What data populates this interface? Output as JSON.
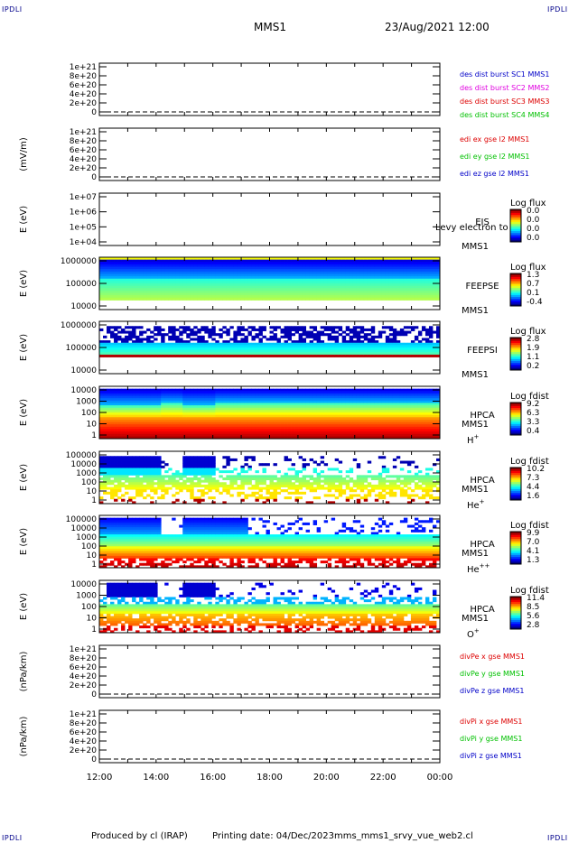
{
  "corner_label": "IPDLI",
  "header": {
    "spacecraft": "MMS1",
    "datetime": "23/Aug/2021 12:00"
  },
  "footer": {
    "produced_by": "Produced by cl (IRAP)",
    "printing_date": "Printing date: 04/Dec/2023",
    "script": "mms_mms1_srvy_vue_web2.cl"
  },
  "colors": {
    "blue": "#0000c8",
    "magenta": "#e000e0",
    "red": "#dd0000",
    "green": "#00c000"
  },
  "chart_data": {
    "type": "heatmap",
    "x_ticks": [
      "12:00",
      "14:00",
      "16:00",
      "18:00",
      "20:00",
      "22:00",
      "00:00"
    ],
    "panels": [
      {
        "kind": "line",
        "ylabel": "",
        "yticks": [
          "1e+21",
          "8e+20",
          "6e+20",
          "4e+20",
          "2e+20",
          "0"
        ],
        "dashed_zero": true,
        "legend": [
          {
            "text": "des dist burst SC1 MMS1",
            "color": "#0000c8"
          },
          {
            "text": "des dist burst SC2 MMS2",
            "color": "#e000e0"
          },
          {
            "text": "des dist burst SC3 MMS3",
            "color": "#dd0000"
          },
          {
            "text": "des dist burst SC4 MMS4",
            "color": "#00c000"
          }
        ]
      },
      {
        "kind": "line",
        "ylabel": "(mV/m)",
        "yticks": [
          "1e+21",
          "8e+20",
          "6e+20",
          "4e+20",
          "2e+20",
          "0"
        ],
        "dashed_zero": true,
        "legend": [
          {
            "text": "edi ex gse l2 MMS1",
            "color": "#dd0000"
          },
          {
            "text": "edi ey gse l2 MMS1",
            "color": "#00c000"
          },
          {
            "text": "edi ez gse l2 MMS1",
            "color": "#0000c8"
          }
        ]
      },
      {
        "kind": "spectro",
        "ylabel": "E (eV)",
        "yticks": [
          "1e+07",
          "1e+06",
          "1e+05",
          "1e+04"
        ],
        "label": [
          "EIS",
          "MMS1"
        ],
        "overlay": "Levy electron to",
        "colorbar": {
          "title": "Log flux",
          "ticks": [
            "0.0",
            "0.0",
            "0.0",
            "0.0"
          ]
        },
        "fill": "empty"
      },
      {
        "kind": "spectro",
        "ylabel": "E (eV)",
        "yticks": [
          "1000000",
          "100000",
          "10000"
        ],
        "label": [
          "FEEPSE",
          "MMS1"
        ],
        "colorbar": {
          "title": "Log flux",
          "ticks": [
            "1.3",
            "0.7",
            "0.1",
            "-0.4"
          ]
        },
        "fill": "feepse"
      },
      {
        "kind": "spectro",
        "ylabel": "E (eV)",
        "yticks": [
          "1000000",
          "100000",
          "10000"
        ],
        "label": [
          "FEEPSI",
          "MMS1"
        ],
        "colorbar": {
          "title": "Log flux",
          "ticks": [
            "2.8",
            "1.9",
            "1.1",
            "0.2"
          ]
        },
        "fill": "feepsi"
      },
      {
        "kind": "spectro",
        "ylabel": "E (eV)",
        "yticks": [
          "10000",
          "1000",
          "100",
          "10",
          "1"
        ],
        "label": [
          "HPCA",
          "MMS1"
        ],
        "species": "H",
        "sup": "+",
        "colorbar": {
          "title": "Log fdist",
          "ticks": [
            "9.2",
            "6.3",
            "3.3",
            "0.4"
          ]
        },
        "fill": "hplus"
      },
      {
        "kind": "spectro",
        "ylabel": "E (eV)",
        "yticks": [
          "100000",
          "10000",
          "1000",
          "100",
          "10",
          "1"
        ],
        "label": [
          "HPCA",
          "MMS1"
        ],
        "species": "He",
        "sup": "+",
        "colorbar": {
          "title": "Log fdist",
          "ticks": [
            "10.2",
            "7.3",
            "4.4",
            "1.6"
          ]
        },
        "fill": "heplus"
      },
      {
        "kind": "spectro",
        "ylabel": "E (eV)",
        "yticks": [
          "100000",
          "10000",
          "1000",
          "100",
          "10",
          "1"
        ],
        "label": [
          "HPCA",
          "MMS1"
        ],
        "species": "He",
        "sup": "++",
        "colorbar": {
          "title": "Log fdist",
          "ticks": [
            "9.9",
            "7.0",
            "4.1",
            "1.3"
          ]
        },
        "fill": "hepp"
      },
      {
        "kind": "spectro",
        "ylabel": "E (eV)",
        "yticks": [
          "10000",
          "1000",
          "100",
          "10",
          "1"
        ],
        "label": [
          "HPCA",
          "MMS1"
        ],
        "species": "O",
        "sup": "+",
        "colorbar": {
          "title": "Log fdist",
          "ticks": [
            "11.4",
            "8.5",
            "5.6",
            "2.8"
          ]
        },
        "fill": "oplus"
      },
      {
        "kind": "line",
        "ylabel": "(nPa/km)",
        "yticks": [
          "1e+21",
          "8e+20",
          "6e+20",
          "4e+20",
          "2e+20",
          "0"
        ],
        "dashed_zero": true,
        "legend": [
          {
            "text": "divPe x gse MMS1",
            "color": "#dd0000"
          },
          {
            "text": "divPe y gse MMS1",
            "color": "#00c000"
          },
          {
            "text": "divPe z gse MMS1",
            "color": "#0000c8"
          }
        ]
      },
      {
        "kind": "line",
        "ylabel": "(nPa/km)",
        "yticks": [
          "1e+21",
          "8e+20",
          "6e+20",
          "4e+20",
          "2e+20",
          "0"
        ],
        "dashed_zero": true,
        "legend": [
          {
            "text": "divPi x gse MMS1",
            "color": "#dd0000"
          },
          {
            "text": "divPi y gse MMS1",
            "color": "#00c000"
          },
          {
            "text": "divPi z gse MMS1",
            "color": "#0000c8"
          }
        ]
      }
    ]
  }
}
